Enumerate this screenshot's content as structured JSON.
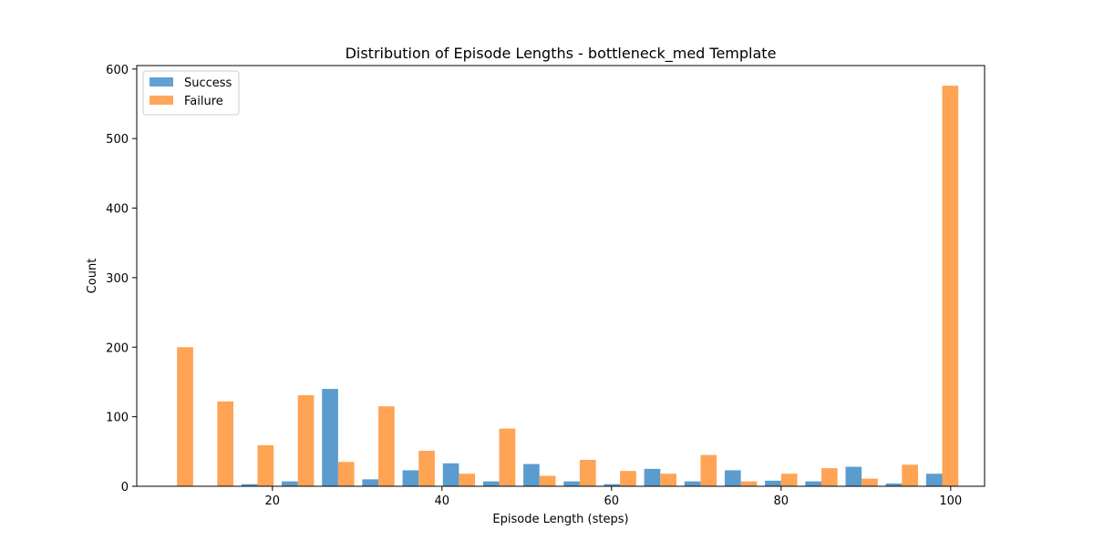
{
  "chart_data": {
    "type": "bar",
    "title": "Distribution of Episode Lengths - bottleneck_med Template",
    "xlabel": "Episode Length (steps)",
    "ylabel": "Count",
    "xlim": [
      4.0,
      104.0
    ],
    "ylim": [
      0,
      605
    ],
    "xticks": [
      20,
      40,
      60,
      80,
      100
    ],
    "yticks": [
      0,
      100,
      200,
      300,
      400,
      500,
      600
    ],
    "grid": false,
    "legend_position": "top-left",
    "bin_centers": [
      8.75,
      13.5,
      18.25,
      23.0,
      27.75,
      32.5,
      37.25,
      42.0,
      46.75,
      51.5,
      56.25,
      61.0,
      65.75,
      70.5,
      75.25,
      80.0,
      84.75,
      89.5,
      94.25,
      99.0
    ],
    "bar_width": 1.9,
    "series": [
      {
        "name": "Success",
        "color": "#5b9ccf",
        "values": [
          0,
          0,
          3,
          7,
          140,
          10,
          23,
          33,
          7,
          32,
          7,
          3,
          25,
          7,
          23,
          8,
          7,
          28,
          4,
          18
        ]
      },
      {
        "name": "Failure",
        "color": "#ffa354",
        "values": [
          200,
          122,
          59,
          131,
          35,
          115,
          51,
          18,
          83,
          15,
          38,
          22,
          18,
          45,
          7,
          18,
          26,
          11,
          31,
          576
        ]
      }
    ]
  }
}
